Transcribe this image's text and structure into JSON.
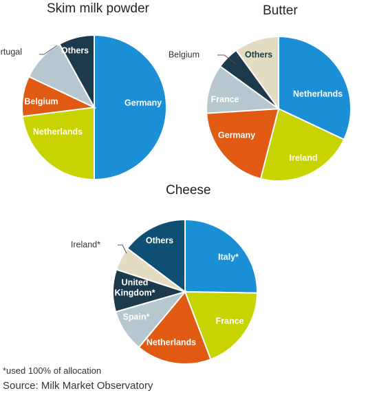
{
  "chart_data": [
    {
      "type": "pie",
      "title": "Skim milk powder",
      "slices": [
        {
          "label": "Germany",
          "value": 50,
          "color": "#1b8fd6",
          "label_inside": true
        },
        {
          "label": "Netherlands",
          "value": 23,
          "color": "#c8d400",
          "label_inside": true
        },
        {
          "label": "Belgium",
          "value": 9,
          "color": "#e05a14",
          "label_inside": true
        },
        {
          "label": "Portugal",
          "value": 10,
          "color": "#b7c7cf",
          "label_inside": false
        },
        {
          "label": "Others",
          "value": 8,
          "color": "#1d3a4c",
          "label_inside": true
        }
      ]
    },
    {
      "type": "pie",
      "title": "Butter",
      "slices": [
        {
          "label": "Netherlands",
          "value": 32,
          "color": "#1b8fd6",
          "label_inside": true
        },
        {
          "label": "Ireland",
          "value": 22,
          "color": "#c8d400",
          "label_inside": true
        },
        {
          "label": "Germany",
          "value": 20,
          "color": "#e05a14",
          "label_inside": true
        },
        {
          "label": "France",
          "value": 11,
          "color": "#b7c7cf",
          "label_inside": true
        },
        {
          "label": "Belgium",
          "value": 5,
          "color": "#1d3a4c",
          "label_inside": false
        },
        {
          "label": "Others",
          "value": 10,
          "color": "#e4dcc2",
          "label_inside": true
        }
      ]
    },
    {
      "type": "pie",
      "title": "Cheese",
      "slices": [
        {
          "label": "Italy*",
          "value": 24,
          "color": "#1b8fd6",
          "label_inside": true
        },
        {
          "label": "France",
          "value": 18,
          "color": "#c8d400",
          "label_inside": true
        },
        {
          "label": "Netherlands",
          "value": 16,
          "color": "#e05a14",
          "label_inside": true
        },
        {
          "label": "Spain*",
          "value": 9,
          "color": "#b7c7cf",
          "label_inside": true
        },
        {
          "label": "United Kingdom*",
          "value": 9,
          "color": "#1d3a4c",
          "label_inside": true
        },
        {
          "label": "Ireland*",
          "value": 5,
          "color": "#e4dcc2",
          "label_inside": false
        },
        {
          "label": "Others",
          "value": 14,
          "color": "#0f4f73",
          "label_inside": true
        }
      ]
    }
  ],
  "footnote": "*used 100% of allocation",
  "source": "Source: Milk Market Observatory"
}
